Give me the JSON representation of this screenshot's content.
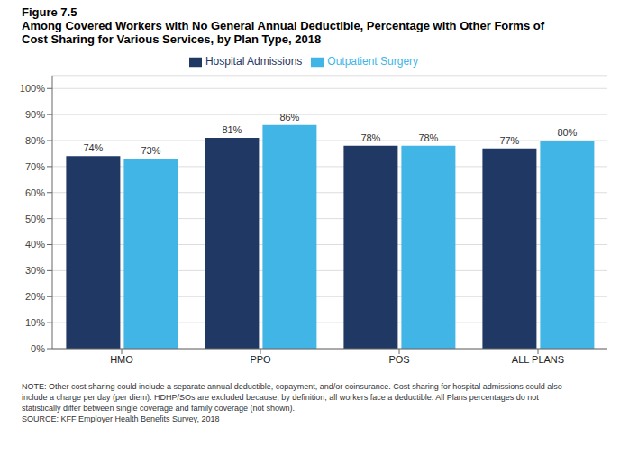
{
  "chart_data": {
    "type": "bar",
    "title": "Among Covered Workers with No General Annual Deductible, Percentage with Other Forms of\nCost Sharing for Various Services, by Plan Type, 2018",
    "annotations": [
      "Figure 7.5",
      "NOTE: Other cost sharing could include a separate annual deductible, copayment, and/or coinsurance. Cost sharing for hospital admissions could also\ninclude a charge per day (per diem). HDHP/SOs are excluded because, by definition, all workers face a deductible. All Plans percentages do not\nstatistically differ between single coverage and family coverage (not shown).\nSOURCE: KFF Employer Health Benefits Survey, 2018"
    ],
    "categories": [
      "HMO",
      "PPO",
      "POS",
      "ALL PLANS"
    ],
    "series": [
      {
        "name": "Hospital Admissions",
        "color": "#1f3864",
        "values": [
          74,
          81,
          78,
          77
        ],
        "value_labels": [
          "74%",
          "81%",
          "78%",
          "77%"
        ]
      },
      {
        "name": "Outpatient Surgery",
        "color": "#41b6e6",
        "values": [
          73,
          86,
          78,
          80
        ],
        "value_labels": [
          "73%",
          "86%",
          "78%",
          "80%"
        ]
      }
    ],
    "ylim": [
      0,
      105
    ],
    "yticks": [
      {
        "value": 0,
        "label": "0%"
      },
      {
        "value": 10,
        "label": "10%"
      },
      {
        "value": 20,
        "label": "20%"
      },
      {
        "value": 30,
        "label": "30%"
      },
      {
        "value": 40,
        "label": "40%"
      },
      {
        "value": 50,
        "label": "50%"
      },
      {
        "value": 60,
        "label": "60%"
      },
      {
        "value": 70,
        "label": "70%"
      },
      {
        "value": 80,
        "label": "80%"
      },
      {
        "value": 90,
        "label": "90%"
      },
      {
        "value": 100,
        "label": "100%"
      }
    ],
    "grid": true,
    "legend": "top",
    "data_labels": true
  }
}
